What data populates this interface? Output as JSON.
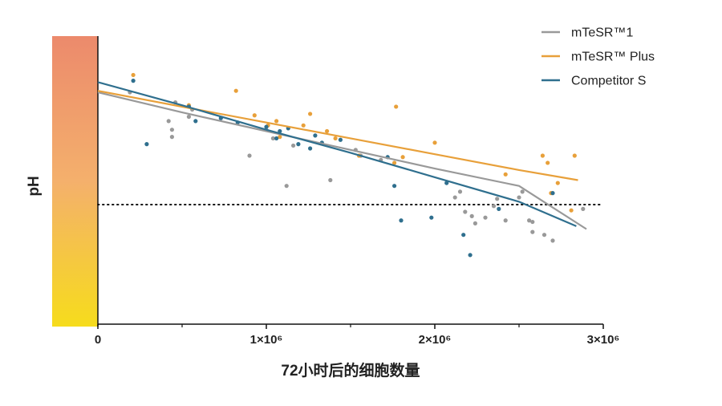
{
  "chart_data": {
    "type": "scatter",
    "title": "",
    "xlabel": "72小时后的细胞数量",
    "ylabel": "pH",
    "xlim": [
      0,
      3000000
    ],
    "ylim": [
      0,
      100
    ],
    "y_ticks_shown": false,
    "x_ticks": [
      {
        "value": 0,
        "label": "0"
      },
      {
        "value": 1000000,
        "label": "1×10⁶"
      },
      {
        "value": 2000000,
        "label": "2×10⁶"
      },
      {
        "value": 3000000,
        "label": "3×10⁶"
      }
    ],
    "reference_line": {
      "y": 41.5,
      "style": "dotted"
    },
    "legend_position": "top-right",
    "ph_color_bar": {
      "top_color": "#ec8a6c",
      "mid_color": "#f4b06c",
      "bottom_color": "#f6dc1c"
    },
    "series": [
      {
        "name": "mTeSR™1",
        "color": "#999999",
        "trend": [
          [
            0,
            80.5
          ],
          [
            500000,
            73.5
          ],
          [
            1000000,
            67
          ],
          [
            1500000,
            60.5
          ],
          [
            2000000,
            54
          ],
          [
            2500000,
            48
          ],
          [
            2900000,
            33
          ]
        ],
        "points": [
          [
            190000,
            80.5
          ],
          [
            420000,
            70.5
          ],
          [
            440000,
            67.5
          ],
          [
            440000,
            65
          ],
          [
            460000,
            77
          ],
          [
            540000,
            72
          ],
          [
            560000,
            74.5
          ],
          [
            900000,
            58.5
          ],
          [
            1000000,
            67.5
          ],
          [
            1040000,
            64.5
          ],
          [
            1120000,
            48
          ],
          [
            1160000,
            62
          ],
          [
            1380000,
            50
          ],
          [
            1530000,
            60.5
          ],
          [
            1560000,
            58.5
          ],
          [
            1680000,
            57
          ],
          [
            2120000,
            44
          ],
          [
            2150000,
            46
          ],
          [
            2180000,
            39
          ],
          [
            2220000,
            37.5
          ],
          [
            2240000,
            35
          ],
          [
            2300000,
            37
          ],
          [
            2350000,
            41
          ],
          [
            2370000,
            43.5
          ],
          [
            2420000,
            36
          ],
          [
            2500000,
            44
          ],
          [
            2520000,
            46
          ],
          [
            2560000,
            36
          ],
          [
            2580000,
            35.5
          ],
          [
            2580000,
            32
          ],
          [
            2650000,
            31
          ],
          [
            2700000,
            29
          ],
          [
            2880000,
            40
          ]
        ]
      },
      {
        "name": "mTeSR™ Plus",
        "color": "#e8a03a",
        "trend": [
          [
            0,
            81
          ],
          [
            500000,
            75.5
          ],
          [
            1000000,
            70
          ],
          [
            1500000,
            64.5
          ],
          [
            2000000,
            59
          ],
          [
            2500000,
            53.5
          ],
          [
            2850000,
            50
          ]
        ],
        "points": [
          [
            210000,
            86.5
          ],
          [
            540000,
            76
          ],
          [
            820000,
            81
          ],
          [
            930000,
            72.5
          ],
          [
            1010000,
            69
          ],
          [
            1060000,
            70.5
          ],
          [
            1080000,
            65
          ],
          [
            1220000,
            69
          ],
          [
            1260000,
            73
          ],
          [
            1360000,
            67
          ],
          [
            1410000,
            64.5
          ],
          [
            1550000,
            58.5
          ],
          [
            1760000,
            56
          ],
          [
            1770000,
            75.5
          ],
          [
            1810000,
            58
          ],
          [
            2000000,
            63
          ],
          [
            2420000,
            52
          ],
          [
            2640000,
            58.5
          ],
          [
            2670000,
            56
          ],
          [
            2690000,
            45.5
          ],
          [
            2730000,
            49
          ],
          [
            2810000,
            39.5
          ],
          [
            2830000,
            58.5
          ]
        ]
      },
      {
        "name": "Competitor S",
        "color": "#2f6f8e",
        "trend": [
          [
            0,
            84
          ],
          [
            500000,
            76
          ],
          [
            1000000,
            67.5
          ],
          [
            1500000,
            59.5
          ],
          [
            2000000,
            51
          ],
          [
            2500000,
            42.5
          ],
          [
            2840000,
            34
          ]
        ],
        "points": [
          [
            210000,
            84.5
          ],
          [
            290000,
            62.5
          ],
          [
            540000,
            75.5
          ],
          [
            580000,
            70.5
          ],
          [
            730000,
            71.5
          ],
          [
            830000,
            70
          ],
          [
            1000000,
            68.5
          ],
          [
            1060000,
            64.5
          ],
          [
            1080000,
            67
          ],
          [
            1130000,
            68
          ],
          [
            1190000,
            62.5
          ],
          [
            1260000,
            61
          ],
          [
            1290000,
            65.5
          ],
          [
            1330000,
            63
          ],
          [
            1440000,
            64
          ],
          [
            1720000,
            58
          ],
          [
            1760000,
            48
          ],
          [
            1800000,
            36
          ],
          [
            1980000,
            37
          ],
          [
            2070000,
            49
          ],
          [
            2170000,
            31
          ],
          [
            2210000,
            24
          ],
          [
            2380000,
            40
          ],
          [
            2700000,
            45.5
          ]
        ]
      }
    ]
  }
}
